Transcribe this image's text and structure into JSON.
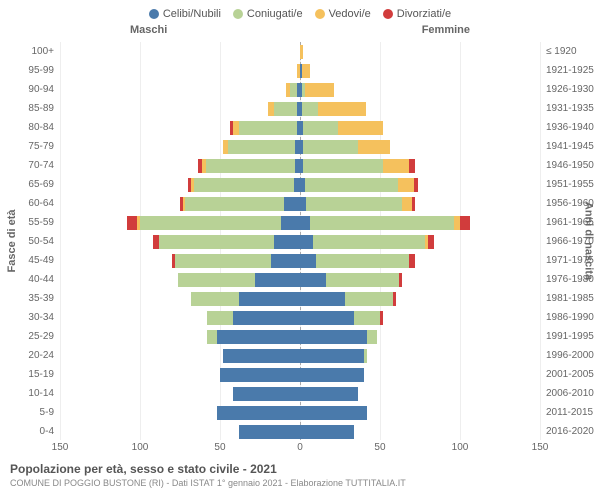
{
  "legend": [
    {
      "label": "Celibi/Nubili",
      "color": "#4a7aab"
    },
    {
      "label": "Coniugati/e",
      "color": "#b8d296"
    },
    {
      "label": "Vedovi/e",
      "color": "#f5c15d"
    },
    {
      "label": "Divorziati/e",
      "color": "#d13c3c"
    }
  ],
  "headers": {
    "male": "Maschi",
    "female": "Femmine"
  },
  "y_left_title": "Fasce di età",
  "y_right_title": "Anni di nascita",
  "age_labels": [
    "100+",
    "95-99",
    "90-94",
    "85-89",
    "80-84",
    "75-79",
    "70-74",
    "65-69",
    "60-64",
    "55-59",
    "50-54",
    "45-49",
    "40-44",
    "35-39",
    "30-34",
    "25-29",
    "20-24",
    "15-19",
    "10-14",
    "5-9",
    "0-4"
  ],
  "birth_labels": [
    "≤ 1920",
    "1921-1925",
    "1926-1930",
    "1931-1935",
    "1936-1940",
    "1941-1945",
    "1946-1950",
    "1951-1955",
    "1956-1960",
    "1961-1965",
    "1966-1970",
    "1971-1975",
    "1976-1980",
    "1981-1985",
    "1986-1990",
    "1991-1995",
    "1996-2000",
    "2001-2005",
    "2006-2010",
    "2011-2015",
    "2016-2020"
  ],
  "x_ticks": [
    -150,
    -100,
    -50,
    0,
    50,
    100,
    150
  ],
  "x_tick_labels": [
    "150",
    "100",
    "50",
    "0",
    "50",
    "100",
    "150"
  ],
  "x_max": 150,
  "colors": {
    "single": "#4a7aab",
    "married": "#b8d296",
    "widowed": "#f5c15d",
    "divorced": "#d13c3c",
    "grid": "#eeeeee",
    "center": "#aaaaaa"
  },
  "male": [
    {
      "s": 0,
      "m": 0,
      "w": 0,
      "d": 0
    },
    {
      "s": 0,
      "m": 0,
      "w": 2,
      "d": 0
    },
    {
      "s": 2,
      "m": 4,
      "w": 3,
      "d": 0
    },
    {
      "s": 2,
      "m": 14,
      "w": 4,
      "d": 0
    },
    {
      "s": 2,
      "m": 36,
      "w": 4,
      "d": 2
    },
    {
      "s": 3,
      "m": 42,
      "w": 3,
      "d": 0
    },
    {
      "s": 3,
      "m": 56,
      "w": 2,
      "d": 3
    },
    {
      "s": 4,
      "m": 62,
      "w": 2,
      "d": 2
    },
    {
      "s": 10,
      "m": 62,
      "w": 1,
      "d": 2
    },
    {
      "s": 12,
      "m": 88,
      "w": 2,
      "d": 6
    },
    {
      "s": 16,
      "m": 72,
      "w": 0,
      "d": 4
    },
    {
      "s": 18,
      "m": 60,
      "w": 0,
      "d": 2
    },
    {
      "s": 28,
      "m": 48,
      "w": 0,
      "d": 0
    },
    {
      "s": 38,
      "m": 30,
      "w": 0,
      "d": 0
    },
    {
      "s": 42,
      "m": 16,
      "w": 0,
      "d": 0
    },
    {
      "s": 52,
      "m": 6,
      "w": 0,
      "d": 0
    },
    {
      "s": 48,
      "m": 0,
      "w": 0,
      "d": 0
    },
    {
      "s": 50,
      "m": 0,
      "w": 0,
      "d": 0
    },
    {
      "s": 42,
      "m": 0,
      "w": 0,
      "d": 0
    },
    {
      "s": 52,
      "m": 0,
      "w": 0,
      "d": 0
    },
    {
      "s": 38,
      "m": 0,
      "w": 0,
      "d": 0
    }
  ],
  "female": [
    {
      "s": 0,
      "m": 0,
      "w": 2,
      "d": 0
    },
    {
      "s": 1,
      "m": 0,
      "w": 5,
      "d": 0
    },
    {
      "s": 1,
      "m": 2,
      "w": 18,
      "d": 0
    },
    {
      "s": 1,
      "m": 10,
      "w": 30,
      "d": 0
    },
    {
      "s": 2,
      "m": 22,
      "w": 28,
      "d": 0
    },
    {
      "s": 2,
      "m": 34,
      "w": 20,
      "d": 0
    },
    {
      "s": 2,
      "m": 50,
      "w": 16,
      "d": 4
    },
    {
      "s": 3,
      "m": 58,
      "w": 10,
      "d": 3
    },
    {
      "s": 4,
      "m": 60,
      "w": 6,
      "d": 2
    },
    {
      "s": 6,
      "m": 90,
      "w": 4,
      "d": 6
    },
    {
      "s": 8,
      "m": 70,
      "w": 2,
      "d": 4
    },
    {
      "s": 10,
      "m": 58,
      "w": 0,
      "d": 4
    },
    {
      "s": 16,
      "m": 46,
      "w": 0,
      "d": 2
    },
    {
      "s": 28,
      "m": 30,
      "w": 0,
      "d": 2
    },
    {
      "s": 34,
      "m": 16,
      "w": 0,
      "d": 2
    },
    {
      "s": 42,
      "m": 6,
      "w": 0,
      "d": 0
    },
    {
      "s": 40,
      "m": 2,
      "w": 0,
      "d": 0
    },
    {
      "s": 40,
      "m": 0,
      "w": 0,
      "d": 0
    },
    {
      "s": 36,
      "m": 0,
      "w": 0,
      "d": 0
    },
    {
      "s": 42,
      "m": 0,
      "w": 0,
      "d": 0
    },
    {
      "s": 34,
      "m": 0,
      "w": 0,
      "d": 0
    }
  ],
  "footer": {
    "title": "Popolazione per età, sesso e stato civile - 2021",
    "subtitle": "COMUNE DI POGGIO BUSTONE (RI) - Dati ISTAT 1° gennaio 2021 - Elaborazione TUTTITALIA.IT"
  }
}
